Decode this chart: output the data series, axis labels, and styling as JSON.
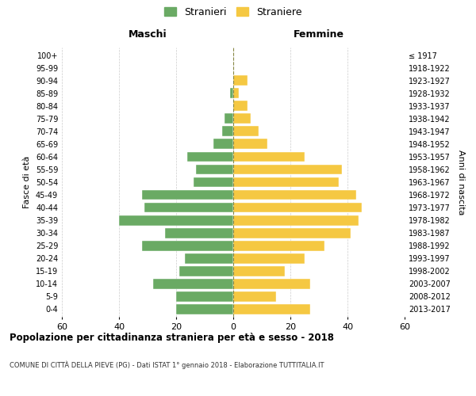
{
  "age_groups": [
    "0-4",
    "5-9",
    "10-14",
    "15-19",
    "20-24",
    "25-29",
    "30-34",
    "35-39",
    "40-44",
    "45-49",
    "50-54",
    "55-59",
    "60-64",
    "65-69",
    "70-74",
    "75-79",
    "80-84",
    "85-89",
    "90-94",
    "95-99",
    "100+"
  ],
  "birth_years": [
    "2013-2017",
    "2008-2012",
    "2003-2007",
    "1998-2002",
    "1993-1997",
    "1988-1992",
    "1983-1987",
    "1978-1982",
    "1973-1977",
    "1968-1972",
    "1963-1967",
    "1958-1962",
    "1953-1957",
    "1948-1952",
    "1943-1947",
    "1938-1942",
    "1933-1937",
    "1928-1932",
    "1923-1927",
    "1918-1922",
    "≤ 1917"
  ],
  "males": [
    20,
    20,
    28,
    19,
    17,
    32,
    24,
    40,
    31,
    32,
    14,
    13,
    16,
    7,
    4,
    3,
    0,
    1,
    0,
    0,
    0
  ],
  "females": [
    27,
    15,
    27,
    18,
    25,
    32,
    41,
    44,
    45,
    43,
    37,
    38,
    25,
    12,
    9,
    6,
    5,
    2,
    5,
    0,
    0
  ],
  "male_color": "#6aaa64",
  "female_color": "#f5c842",
  "background_color": "#ffffff",
  "grid_color": "#cccccc",
  "dashed_line_color": "#888844",
  "title": "Popolazione per cittadinanza straniera per età e sesso - 2018",
  "subtitle": "COMUNE DI CITTÀ DELLA PIEVE (PG) - Dati ISTAT 1° gennaio 2018 - Elaborazione TUTTITALIA.IT",
  "xlabel_left": "Maschi",
  "xlabel_right": "Femmine",
  "ylabel_left": "Fasce di età",
  "ylabel_right": "Anni di nascita",
  "legend_male": "Stranieri",
  "legend_female": "Straniere",
  "xlim": 60,
  "bar_height": 0.8
}
